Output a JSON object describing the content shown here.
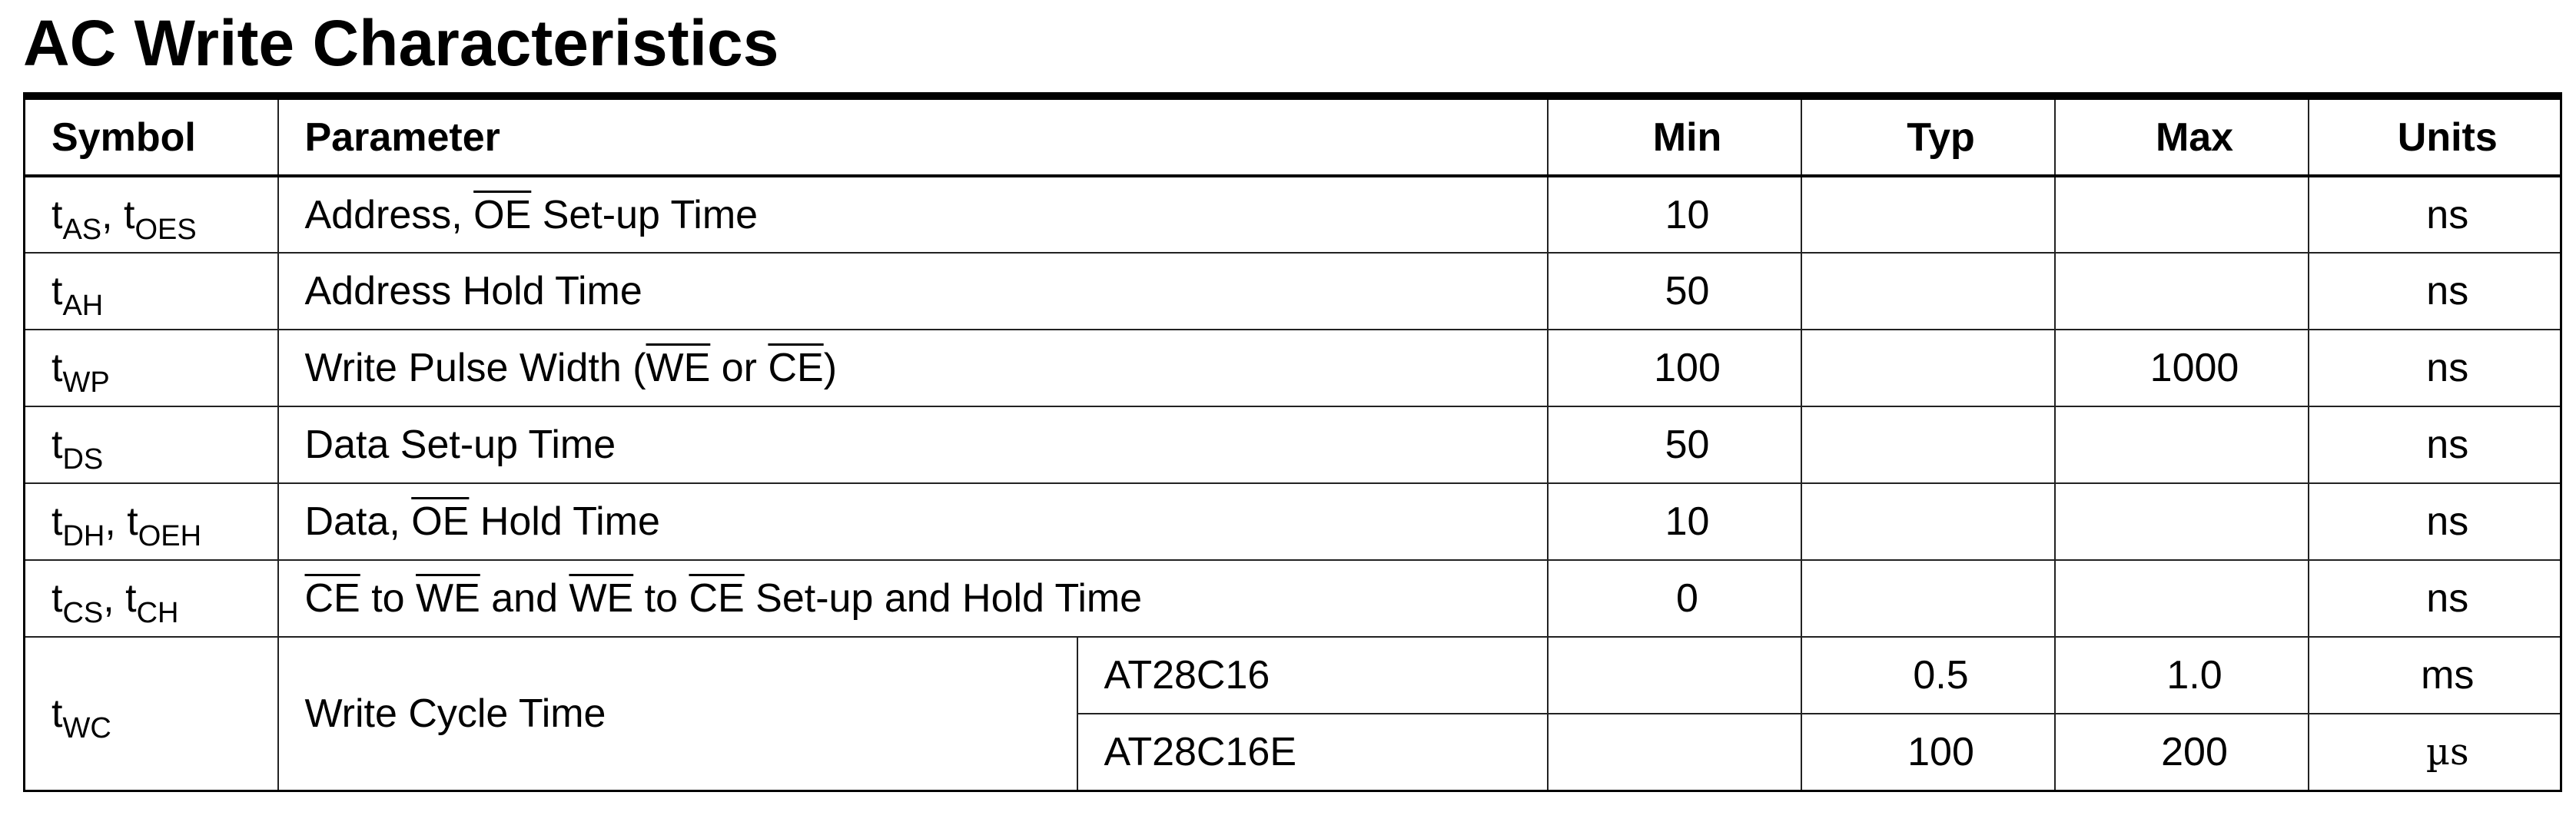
{
  "title": "AC Write Characteristics",
  "headers": {
    "symbol": "Symbol",
    "parameter": "Parameter",
    "min": "Min",
    "typ": "Typ",
    "max": "Max",
    "units": "Units"
  },
  "rows": [
    {
      "symbol": [
        {
          "t": "t",
          "s": "AS"
        },
        {
          "t": ", t",
          "s": "OES"
        }
      ],
      "parameter": [
        {
          "text": "Address, "
        },
        {
          "text": "OE",
          "overline": true
        },
        {
          "text": " Set-up Time"
        }
      ],
      "min": "10",
      "typ": "",
      "max": "",
      "units": "ns"
    },
    {
      "symbol": [
        {
          "t": "t",
          "s": "AH"
        }
      ],
      "parameter": [
        {
          "text": "Address Hold Time"
        }
      ],
      "min": "50",
      "typ": "",
      "max": "",
      "units": "ns"
    },
    {
      "symbol": [
        {
          "t": "t",
          "s": "WP"
        }
      ],
      "parameter": [
        {
          "text": "Write Pulse Width ("
        },
        {
          "text": "WE",
          "overline": true
        },
        {
          "text": " or "
        },
        {
          "text": "CE",
          "overline": true
        },
        {
          "text": ")"
        }
      ],
      "min": "100",
      "typ": "",
      "max": "1000",
      "units": "ns"
    },
    {
      "symbol": [
        {
          "t": "t",
          "s": "DS"
        }
      ],
      "parameter": [
        {
          "text": "Data Set-up Time"
        }
      ],
      "min": "50",
      "typ": "",
      "max": "",
      "units": "ns"
    },
    {
      "symbol": [
        {
          "t": "t",
          "s": "DH"
        },
        {
          "t": ", t",
          "s": "OEH"
        }
      ],
      "parameter": [
        {
          "text": "Data, "
        },
        {
          "text": "OE",
          "overline": true
        },
        {
          "text": " Hold Time"
        }
      ],
      "min": "10",
      "typ": "",
      "max": "",
      "units": "ns"
    },
    {
      "symbol": [
        {
          "t": "t",
          "s": "CS"
        },
        {
          "t": ", t",
          "s": "CH"
        }
      ],
      "parameter": [
        {
          "text": "CE",
          "overline": true
        },
        {
          "text": " to "
        },
        {
          "text": "WE",
          "overline": true
        },
        {
          "text": " and "
        },
        {
          "text": "WE",
          "overline": true
        },
        {
          "text": " to "
        },
        {
          "text": "CE",
          "overline": true
        },
        {
          "text": " Set-up and Hold Time"
        }
      ],
      "min": "0",
      "typ": "",
      "max": "",
      "units": "ns"
    }
  ],
  "write_cycle": {
    "symbol": [
      {
        "t": "t",
        "s": "WC"
      }
    ],
    "parameter": "Write Cycle Time",
    "variants": [
      {
        "device": "AT28C16",
        "min": "",
        "typ": "0.5",
        "max": "1.0",
        "units": "ms"
      },
      {
        "device": "AT28C16E",
        "min": "",
        "typ": "100",
        "max": "200",
        "units": "µs"
      }
    ]
  }
}
